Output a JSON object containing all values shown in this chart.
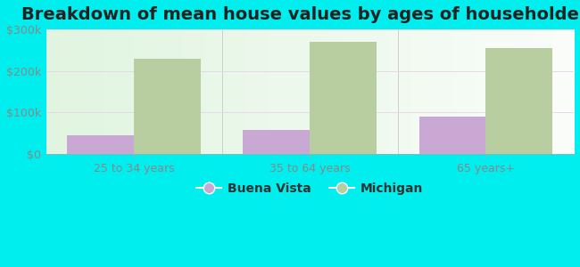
{
  "title": "Breakdown of mean house values by ages of householders",
  "categories": [
    "25 to 34 years",
    "35 to 64 years",
    "65 years+"
  ],
  "buena_vista": [
    45000,
    57000,
    90000
  ],
  "michigan": [
    230000,
    270000,
    255000
  ],
  "buena_vista_color": "#c9a8d4",
  "michigan_color": "#b8cda0",
  "ylim": [
    0,
    300000
  ],
  "yticks": [
    0,
    100000,
    200000,
    300000
  ],
  "ytick_labels": [
    "$0",
    "$100k",
    "$200k",
    "$300k"
  ],
  "legend_labels": [
    "Buena Vista",
    "Michigan"
  ],
  "background_color": "#00eeee",
  "title_fontsize": 14,
  "tick_fontsize": 9,
  "legend_fontsize": 10,
  "bar_width": 0.38,
  "tick_color": "#888888",
  "grid_color": "#ddddee",
  "separator_color": "#aaaaaa"
}
